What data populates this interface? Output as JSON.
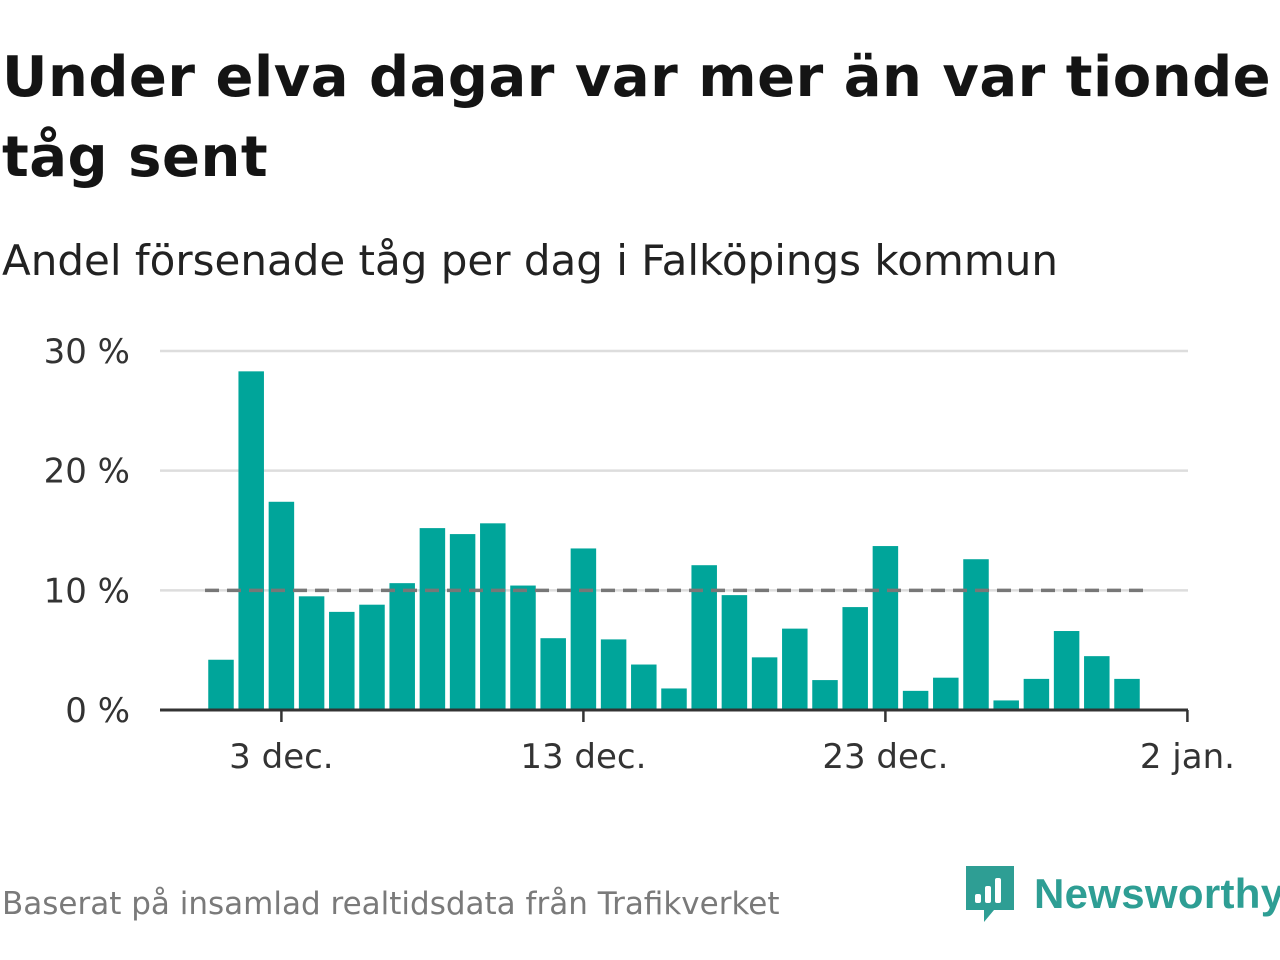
{
  "title": "Under elva dagar var mer än var tionde tåg sent",
  "subtitle": "Andel försenade tåg per dag i Falköpings kommun",
  "source": "Baserat på insamlad realtidsdata från Trafikverket",
  "brand": {
    "name": "Newsworthy",
    "icon": "newsworthy-logo-icon",
    "color": "#2e9e94"
  },
  "colors": {
    "bar": "#00a59a",
    "grid": "#dddddd",
    "reference_line": "#777777",
    "axis": "#333333"
  },
  "chart_data": {
    "type": "bar",
    "x": [
      "2021-12-01",
      "2021-12-02",
      "2021-12-03",
      "2021-12-04",
      "2021-12-05",
      "2021-12-06",
      "2021-12-07",
      "2021-12-08",
      "2021-12-09",
      "2021-12-10",
      "2021-12-11",
      "2021-12-12",
      "2021-12-13",
      "2021-12-14",
      "2021-12-15",
      "2021-12-16",
      "2021-12-17",
      "2021-12-18",
      "2021-12-19",
      "2021-12-20",
      "2021-12-21",
      "2021-12-22",
      "2021-12-23",
      "2021-12-24",
      "2021-12-25",
      "2021-12-26",
      "2021-12-27",
      "2021-12-28",
      "2021-12-29",
      "2021-12-30",
      "2021-12-31",
      "2022-01-01"
    ],
    "values": [
      4.2,
      28.3,
      17.4,
      9.5,
      8.2,
      8.8,
      10.6,
      15.2,
      14.7,
      15.6,
      10.4,
      6.0,
      13.5,
      5.9,
      3.8,
      1.8,
      12.1,
      9.6,
      4.4,
      6.8,
      2.5,
      8.6,
      13.7,
      1.6,
      2.7,
      12.6,
      0.8,
      2.6,
      6.6,
      4.5,
      2.6,
      null
    ],
    "ylim": [
      0,
      30
    ],
    "yticks": [
      0,
      10,
      20,
      30
    ],
    "ytick_labels": [
      "0 %",
      "10 %",
      "20 %",
      "30 %"
    ],
    "xticks": [
      "2021-12-03",
      "2021-12-13",
      "2021-12-23",
      "2022-01-02"
    ],
    "xtick_labels": [
      "3 dec.",
      "13 dec.",
      "23 dec.",
      "2 jan."
    ],
    "reference_line": {
      "value": 10,
      "style": "dashed"
    },
    "grid": true,
    "xlabel": "",
    "ylabel": ""
  }
}
